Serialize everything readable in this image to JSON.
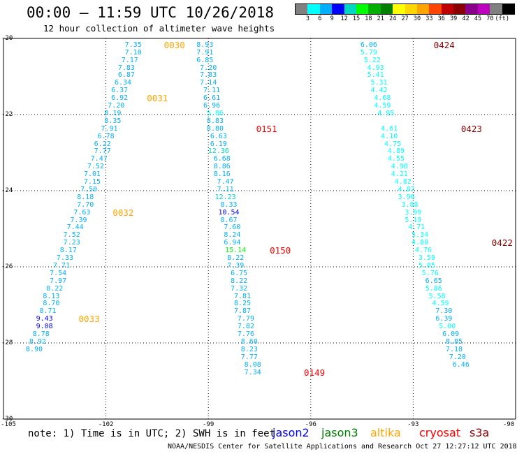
{
  "header": {
    "title": "00:00 — 11:59 UTC 10/26/2018",
    "subtitle": "12 hour collection of altimeter wave heights"
  },
  "colorbar": {
    "colors": [
      "#808080",
      "#00ffff",
      "#00b0ff",
      "#0000ff",
      "#00d7c3",
      "#00ff00",
      "#00b000",
      "#008000",
      "#ffff00",
      "#ffd700",
      "#ffa500",
      "#ff4500",
      "#c00000",
      "#8b0000",
      "#8b008b",
      "#c000c0",
      "#808080",
      "#000000"
    ],
    "labels": [
      "3",
      "6",
      "9",
      "12",
      "15",
      "18",
      "21",
      "24",
      "27",
      "30",
      "33",
      "36",
      "39",
      "42",
      "45",
      "70",
      "(ft)"
    ]
  },
  "axes": {
    "x_ticks": [
      "-105",
      "-102",
      "-99",
      "-96",
      "-93",
      "-90"
    ],
    "y_ticks": [
      "-20",
      "-22",
      "-24",
      "-26",
      "-28",
      "-30"
    ]
  },
  "chart_data": {
    "type": "scatter",
    "title": "12 hour collection of altimeter wave heights",
    "xlim": [
      -105,
      -90
    ],
    "ylim": [
      -30,
      -20
    ],
    "units": "ft",
    "series": [
      {
        "name": "track-altika",
        "points": [
          {
            "lon": -101.2,
            "lat": -20.18,
            "v": "7.35"
          },
          {
            "lon": -101.2,
            "lat": -20.38,
            "v": "7.10"
          },
          {
            "lon": -101.3,
            "lat": -20.58,
            "v": "7.17"
          },
          {
            "lon": -101.4,
            "lat": -20.78,
            "v": "7.83"
          },
          {
            "lon": -101.4,
            "lat": -20.98,
            "v": "6.87"
          },
          {
            "lon": -101.5,
            "lat": -21.18,
            "v": "6.34"
          },
          {
            "lon": -101.6,
            "lat": -21.38,
            "v": "6.37"
          },
          {
            "lon": -101.6,
            "lat": -21.58,
            "v": "6.92"
          },
          {
            "lon": -101.7,
            "lat": -21.78,
            "v": "7.20"
          },
          {
            "lon": -101.8,
            "lat": -21.98,
            "v": "8.19"
          },
          {
            "lon": -101.8,
            "lat": -22.18,
            "v": "8.35"
          },
          {
            "lon": -101.9,
            "lat": -22.38,
            "v": "7.91"
          },
          {
            "lon": -102.0,
            "lat": -22.58,
            "v": "6.78"
          },
          {
            "lon": -102.1,
            "lat": -22.78,
            "v": "6.22"
          },
          {
            "lon": -102.1,
            "lat": -22.98,
            "v": "7.77"
          },
          {
            "lon": -102.2,
            "lat": -23.18,
            "v": "7.47"
          },
          {
            "lon": -102.3,
            "lat": -23.38,
            "v": "7.52"
          },
          {
            "lon": -102.4,
            "lat": -23.58,
            "v": "7.01"
          },
          {
            "lon": -102.4,
            "lat": -23.78,
            "v": "7.15"
          },
          {
            "lon": -102.5,
            "lat": -23.98,
            "v": "7.50"
          },
          {
            "lon": -102.6,
            "lat": -24.18,
            "v": "8.18"
          },
          {
            "lon": -102.6,
            "lat": -24.38,
            "v": "7.70"
          },
          {
            "lon": -102.7,
            "lat": -24.58,
            "v": "7.63"
          },
          {
            "lon": -102.8,
            "lat": -24.78,
            "v": "7.39"
          },
          {
            "lon": -102.9,
            "lat": -24.98,
            "v": "7.44"
          },
          {
            "lon": -103.0,
            "lat": -25.18,
            "v": "7.52"
          },
          {
            "lon": -103.0,
            "lat": -25.38,
            "v": "7.23"
          },
          {
            "lon": -103.1,
            "lat": -25.58,
            "v": "8.17"
          },
          {
            "lon": -103.2,
            "lat": -25.78,
            "v": "7.33"
          },
          {
            "lon": -103.3,
            "lat": -25.98,
            "v": "7.71"
          },
          {
            "lon": -103.4,
            "lat": -26.18,
            "v": "7.54"
          },
          {
            "lon": -103.4,
            "lat": -26.38,
            "v": "7.97"
          },
          {
            "lon": -103.5,
            "lat": -26.58,
            "v": "8.22"
          },
          {
            "lon": -103.6,
            "lat": -26.78,
            "v": "8.13"
          },
          {
            "lon": -103.6,
            "lat": -26.98,
            "v": "8.70"
          },
          {
            "lon": -103.7,
            "lat": -27.18,
            "v": "8.71"
          },
          {
            "lon": -103.8,
            "lat": -27.38,
            "v": "9.43"
          },
          {
            "lon": -103.8,
            "lat": -27.58,
            "v": "9.08"
          },
          {
            "lon": -103.9,
            "lat": -27.78,
            "v": "8.78"
          },
          {
            "lon": -104.0,
            "lat": -27.98,
            "v": "8.92"
          },
          {
            "lon": -104.1,
            "lat": -28.18,
            "v": "8.90"
          }
        ]
      },
      {
        "name": "track-cryosat",
        "points": [
          {
            "lon": -99.1,
            "lat": -20.18,
            "v": "8.93"
          },
          {
            "lon": -99.1,
            "lat": -20.38,
            "v": "7.91"
          },
          {
            "lon": -99.1,
            "lat": -20.58,
            "v": "6.85"
          },
          {
            "lon": -99.0,
            "lat": -20.78,
            "v": "7.20"
          },
          {
            "lon": -99.0,
            "lat": -20.98,
            "v": "7.83"
          },
          {
            "lon": -99.0,
            "lat": -21.18,
            "v": "7.14"
          },
          {
            "lon": -98.9,
            "lat": -21.38,
            "v": "7.11"
          },
          {
            "lon": -98.9,
            "lat": -21.58,
            "v": "6.61"
          },
          {
            "lon": -98.9,
            "lat": -21.78,
            "v": "6.96"
          },
          {
            "lon": -98.8,
            "lat": -21.98,
            "v": "5.86"
          },
          {
            "lon": -98.8,
            "lat": -22.18,
            "v": "8.83"
          },
          {
            "lon": -98.8,
            "lat": -22.38,
            "v": "8.80"
          },
          {
            "lon": -98.7,
            "lat": -22.58,
            "v": "6.63"
          },
          {
            "lon": -98.7,
            "lat": -22.78,
            "v": "6.19"
          },
          {
            "lon": -98.7,
            "lat": -22.98,
            "v": "12.36"
          },
          {
            "lon": -98.6,
            "lat": -23.18,
            "v": "6.68"
          },
          {
            "lon": -98.6,
            "lat": -23.38,
            "v": "8.86"
          },
          {
            "lon": -98.6,
            "lat": -23.58,
            "v": "8.16"
          },
          {
            "lon": -98.5,
            "lat": -23.78,
            "v": "7.47"
          },
          {
            "lon": -98.5,
            "lat": -23.98,
            "v": "7.11"
          },
          {
            "lon": -98.5,
            "lat": -24.18,
            "v": "12.23"
          },
          {
            "lon": -98.4,
            "lat": -24.38,
            "v": "8.33"
          },
          {
            "lon": -98.4,
            "lat": -24.58,
            "v": "10.54"
          },
          {
            "lon": -98.4,
            "lat": -24.78,
            "v": "8.67"
          },
          {
            "lon": -98.3,
            "lat": -24.98,
            "v": "7.60"
          },
          {
            "lon": -98.3,
            "lat": -25.18,
            "v": "8.24"
          },
          {
            "lon": -98.3,
            "lat": -25.38,
            "v": "6.94"
          },
          {
            "lon": -98.2,
            "lat": -25.58,
            "v": "15.14"
          },
          {
            "lon": -98.2,
            "lat": -25.78,
            "v": "8.22"
          },
          {
            "lon": -98.2,
            "lat": -25.98,
            "v": "7.39"
          },
          {
            "lon": -98.1,
            "lat": -26.18,
            "v": "6.75"
          },
          {
            "lon": -98.1,
            "lat": -26.38,
            "v": "8.22"
          },
          {
            "lon": -98.1,
            "lat": -26.58,
            "v": "7.32"
          },
          {
            "lon": -98.0,
            "lat": -26.78,
            "v": "7.81"
          },
          {
            "lon": -98.0,
            "lat": -26.98,
            "v": "8.25"
          },
          {
            "lon": -98.0,
            "lat": -27.18,
            "v": "7.87"
          },
          {
            "lon": -97.9,
            "lat": -27.38,
            "v": "7.79"
          },
          {
            "lon": -97.9,
            "lat": -27.58,
            "v": "7.82"
          },
          {
            "lon": -97.9,
            "lat": -27.78,
            "v": "7.76"
          },
          {
            "lon": -97.8,
            "lat": -27.98,
            "v": "8.60"
          },
          {
            "lon": -97.8,
            "lat": -28.18,
            "v": "8.23"
          },
          {
            "lon": -97.8,
            "lat": -28.38,
            "v": "7.77"
          },
          {
            "lon": -97.7,
            "lat": -28.58,
            "v": "8.08"
          },
          {
            "lon": -97.7,
            "lat": -28.78,
            "v": "7.34"
          }
        ]
      },
      {
        "name": "track-s3a",
        "points": [
          {
            "lon": -94.3,
            "lat": -20.18,
            "v": "6.06"
          },
          {
            "lon": -94.3,
            "lat": -20.38,
            "v": "5.79"
          },
          {
            "lon": -94.2,
            "lat": -20.58,
            "v": "5.22"
          },
          {
            "lon": -94.1,
            "lat": -20.78,
            "v": "4.93"
          },
          {
            "lon": -94.1,
            "lat": -20.98,
            "v": "5.41"
          },
          {
            "lon": -94.0,
            "lat": -21.18,
            "v": "5.31"
          },
          {
            "lon": -94.0,
            "lat": -21.38,
            "v": "4.42"
          },
          {
            "lon": -93.9,
            "lat": -21.58,
            "v": "4.68"
          },
          {
            "lon": -93.9,
            "lat": -21.78,
            "v": "4.59"
          },
          {
            "lon": -93.8,
            "lat": -21.98,
            "v": "4.95"
          },
          {
            "lon": -93.7,
            "lat": -22.38,
            "v": "4.61"
          },
          {
            "lon": -93.7,
            "lat": -22.58,
            "v": "4.10"
          },
          {
            "lon": -93.6,
            "lat": -22.78,
            "v": "4.75"
          },
          {
            "lon": -93.5,
            "lat": -22.98,
            "v": "4.89"
          },
          {
            "lon": -93.5,
            "lat": -23.18,
            "v": "4.55"
          },
          {
            "lon": -93.4,
            "lat": -23.38,
            "v": "4.98"
          },
          {
            "lon": -93.4,
            "lat": -23.58,
            "v": "4.21"
          },
          {
            "lon": -93.3,
            "lat": -23.78,
            "v": "4.82"
          },
          {
            "lon": -93.2,
            "lat": -23.98,
            "v": "4.87"
          },
          {
            "lon": -93.2,
            "lat": -24.18,
            "v": "3.96"
          },
          {
            "lon": -93.1,
            "lat": -24.38,
            "v": "3.88"
          },
          {
            "lon": -93.0,
            "lat": -24.58,
            "v": "3.99"
          },
          {
            "lon": -93.0,
            "lat": -24.78,
            "v": "5.19"
          },
          {
            "lon": -92.9,
            "lat": -24.98,
            "v": "4.71"
          },
          {
            "lon": -92.8,
            "lat": -25.18,
            "v": "5.34"
          },
          {
            "lon": -92.8,
            "lat": -25.38,
            "v": "4.89"
          },
          {
            "lon": -92.7,
            "lat": -25.58,
            "v": "4.76"
          },
          {
            "lon": -92.6,
            "lat": -25.78,
            "v": "3.59"
          },
          {
            "lon": -92.6,
            "lat": -25.98,
            "v": "5.05"
          },
          {
            "lon": -92.5,
            "lat": -26.18,
            "v": "5.76"
          },
          {
            "lon": -92.4,
            "lat": -26.38,
            "v": "6.65"
          },
          {
            "lon": -92.4,
            "lat": -26.58,
            "v": "5.86"
          },
          {
            "lon": -92.3,
            "lat": -26.78,
            "v": "5.58"
          },
          {
            "lon": -92.2,
            "lat": -26.98,
            "v": "4.59"
          },
          {
            "lon": -92.1,
            "lat": -27.18,
            "v": "7.30"
          },
          {
            "lon": -92.1,
            "lat": -27.38,
            "v": "6.39"
          },
          {
            "lon": -92.0,
            "lat": -27.58,
            "v": "5.00"
          },
          {
            "lon": -91.9,
            "lat": -27.78,
            "v": "6.09"
          },
          {
            "lon": -91.8,
            "lat": -27.98,
            "v": "8.85"
          },
          {
            "lon": -91.8,
            "lat": -28.18,
            "v": "7.18"
          },
          {
            "lon": -91.7,
            "lat": -28.38,
            "v": "7.20"
          },
          {
            "lon": -91.6,
            "lat": -28.58,
            "v": "6.46"
          }
        ]
      }
    ],
    "time_labels": [
      {
        "lon": -100.3,
        "lat": -20.18,
        "text": "0030",
        "color": "#ffa500"
      },
      {
        "lon": -100.8,
        "lat": -21.58,
        "text": "0031",
        "color": "#ffa500"
      },
      {
        "lon": -101.8,
        "lat": -24.58,
        "text": "0032",
        "color": "#ffa500"
      },
      {
        "lon": -102.8,
        "lat": -27.38,
        "text": "0033",
        "color": "#ffa500"
      },
      {
        "lon": -97.6,
        "lat": -22.38,
        "text": "0151",
        "color": "#ff0000"
      },
      {
        "lon": -97.2,
        "lat": -25.58,
        "text": "0150",
        "color": "#ff0000"
      },
      {
        "lon": -96.2,
        "lat": -28.78,
        "text": "0149",
        "color": "#ff0000"
      },
      {
        "lon": -92.4,
        "lat": -20.18,
        "text": "0424",
        "color": "#8b0000"
      },
      {
        "lon": -91.6,
        "lat": -22.38,
        "text": "0423",
        "color": "#8b0000"
      },
      {
        "lon": -90.7,
        "lat": -25.38,
        "text": "0422",
        "color": "#8b0000"
      }
    ]
  },
  "footer": {
    "note": "note: 1) Time is in UTC; 2) SWH is in feet",
    "legend": [
      {
        "name": "jason2",
        "color": "#0000ff"
      },
      {
        "name": "jason3",
        "color": "#008000"
      },
      {
        "name": "altika",
        "color": "#ffa500"
      },
      {
        "name": "cryosat",
        "color": "#ff0000"
      },
      {
        "name": "s3a",
        "color": "#8b0000"
      }
    ],
    "credit": "NOAA/NESDIS Center for Satellite Applications and Research   Oct 27 12:27:12 UTC 2018"
  }
}
